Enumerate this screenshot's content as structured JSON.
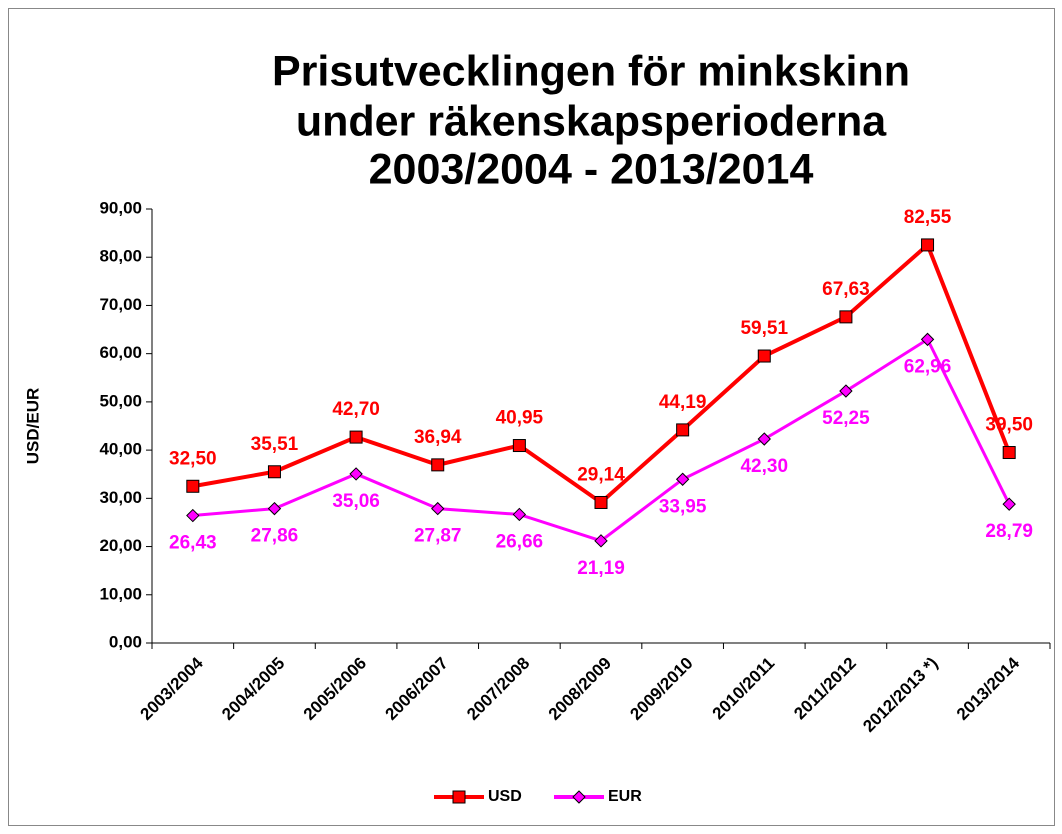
{
  "chart_data": {
    "type": "line",
    "title": [
      "Prisutvecklingen för minkskinn",
      "under räkenskapsperioderna",
      "2003/2004 - 2013/2014"
    ],
    "y_label": "USD/EUR",
    "categories": [
      "2003/2004",
      "2004/2005",
      "2005/2006",
      "2006/2007",
      "2007/2008",
      "2008/2009",
      "2009/2010",
      "2010/2011",
      "2011/2012",
      "2012/2013 *)",
      "2013/2014"
    ],
    "series": [
      {
        "name": "USD",
        "color": "#ff0000",
        "marker": "square",
        "values": [
          32.5,
          35.51,
          42.7,
          36.94,
          40.95,
          29.14,
          44.19,
          59.51,
          67.63,
          82.55,
          39.5
        ],
        "value_labels": [
          "32,50",
          "35,51",
          "42,70",
          "36,94",
          "40,95",
          "29,14",
          "44,19",
          "59,51",
          "67,63",
          "82,55",
          "39,50"
        ]
      },
      {
        "name": "EUR",
        "color": "#ff00ff",
        "marker": "diamond",
        "values": [
          26.43,
          27.86,
          35.06,
          27.87,
          26.66,
          21.19,
          33.95,
          42.3,
          52.25,
          62.96,
          28.79
        ],
        "value_labels": [
          "26,43",
          "27,86",
          "35,06",
          "27,87",
          "26,66",
          "21,19",
          "33,95",
          "42,30",
          "52,25",
          "62,96",
          "28,79"
        ]
      }
    ],
    "ylim": [
      0,
      90
    ],
    "yticks": [
      {
        "value": 0,
        "label": "0,00"
      },
      {
        "value": 10,
        "label": "10,00"
      },
      {
        "value": 20,
        "label": "20,00"
      },
      {
        "value": 30,
        "label": "30,00"
      },
      {
        "value": 40,
        "label": "40,00"
      },
      {
        "value": 50,
        "label": "50,00"
      },
      {
        "value": 60,
        "label": "60,00"
      },
      {
        "value": 70,
        "label": "70,00"
      },
      {
        "value": 80,
        "label": "80,00"
      },
      {
        "value": 90,
        "label": "90,00"
      }
    ],
    "grid": false,
    "legend": "bottom"
  }
}
